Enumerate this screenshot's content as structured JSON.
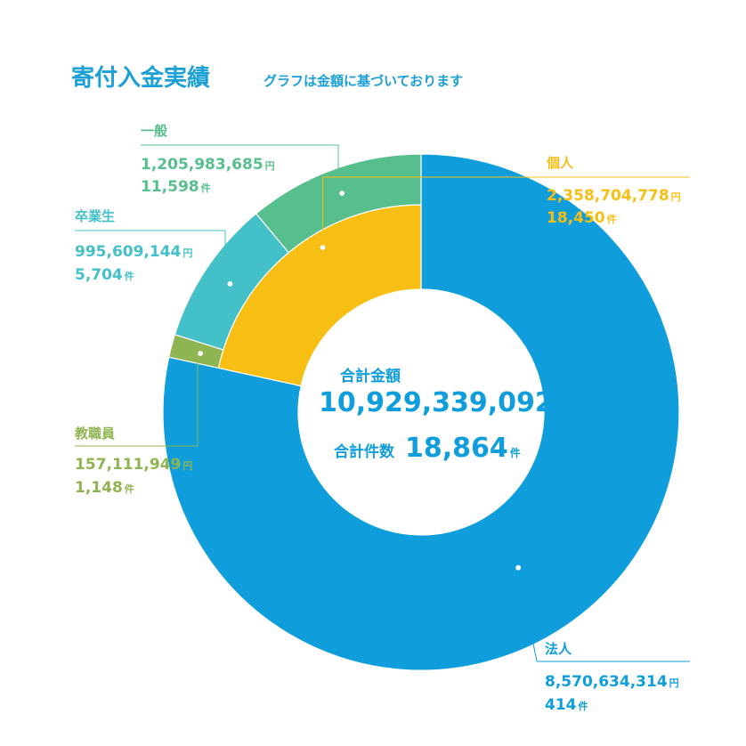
{
  "title": "寄付入金実績",
  "subtitle": "グラフは金額に基づいております",
  "center": {
    "amount_caption": "合計金額",
    "amount_value": "10,929,339,092",
    "amount_unit": "円",
    "count_caption": "合計件数",
    "count_value": "18,864",
    "count_unit": "件"
  },
  "colors": {
    "title": "#1a9fd6",
    "corporate": "#0f9ddc",
    "individual": "#f7bf14",
    "general": "#57bf8d",
    "graduate": "#43c0c8",
    "staff": "#8fb552"
  },
  "chart_data": {
    "type": "pie",
    "title": "寄付入金実績",
    "subtitle": "グラフは金額に基づいております",
    "amount_unit": "円",
    "count_unit": "件",
    "total_amount": 10929339092,
    "total_count": 18864,
    "slices": [
      {
        "key": "corporate",
        "label": "法人",
        "amount": 8570634314,
        "amount_text": "8,570,634,314",
        "count": 414,
        "count_text": "414",
        "ring": "outer-full",
        "color": "#0f9ddc"
      },
      {
        "key": "individual",
        "label": "個人",
        "amount": 2358704778,
        "amount_text": "2,358,704,778",
        "count": 18450,
        "count_text": "18,450",
        "ring": "inner",
        "color": "#f7bf14"
      },
      {
        "key": "general",
        "label": "一般",
        "amount": 1205983685,
        "amount_text": "1,205,983,685",
        "count": 11598,
        "count_text": "11,598",
        "ring": "outer-sub",
        "color": "#57bf8d"
      },
      {
        "key": "graduate",
        "label": "卒業生",
        "amount": 995609144,
        "amount_text": "995,609,144",
        "count": 5704,
        "count_text": "5,704",
        "ring": "outer-sub",
        "color": "#43c0c8"
      },
      {
        "key": "staff",
        "label": "教職員",
        "amount": 157111949,
        "amount_text": "157,111,949",
        "count": 1148,
        "count_text": "1,148",
        "ring": "outer-sub",
        "color": "#8fb552"
      }
    ]
  }
}
